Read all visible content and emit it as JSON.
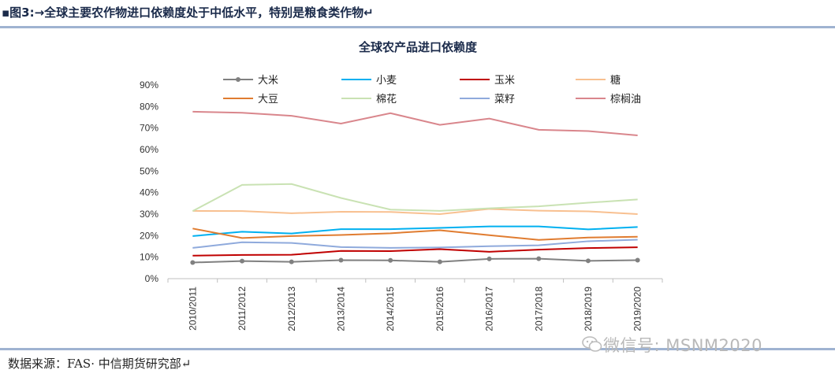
{
  "caption": "▪图3:→全球主要农作物进口依赖度处于中低水平，特别是粮食类作物↵",
  "source": "数据来源：FAS· 中信期货研究部↵",
  "watermark": "微信号: MSNM2020",
  "chart_data": {
    "type": "line",
    "title": "全球农产品进口依赖度",
    "xlabel": "",
    "ylabel": "",
    "categories": [
      "2010/2011",
      "2011/2012",
      "2012/2013",
      "2013/2014",
      "2014/2015",
      "2015/2016",
      "2016/2017",
      "2017/2018",
      "2018/2019",
      "2019/2020"
    ],
    "ylim": [
      0,
      90
    ],
    "yticks": [
      "0%",
      "10%",
      "20%",
      "30%",
      "40%",
      "50%",
      "60%",
      "70%",
      "80%",
      "90%"
    ],
    "legend_position": "top",
    "series": [
      {
        "name": "大米",
        "color": "#808080",
        "marker": true,
        "values": [
          7.5,
          8.2,
          7.8,
          8.6,
          8.5,
          7.8,
          9.2,
          9.3,
          8.3,
          8.6
        ]
      },
      {
        "name": "小麦",
        "color": "#00b0f0",
        "values": [
          19.8,
          21.8,
          21.0,
          23.0,
          23.0,
          23.6,
          24.3,
          24.3,
          22.9,
          24.0
        ]
      },
      {
        "name": "玉米",
        "color": "#c00000",
        "values": [
          10.7,
          11.0,
          11.1,
          12.9,
          12.8,
          13.7,
          12.5,
          13.5,
          14.2,
          14.6
        ]
      },
      {
        "name": "糖",
        "color": "#f8c090",
        "values": [
          31.5,
          31.4,
          30.4,
          31.1,
          31.0,
          30.0,
          32.4,
          31.6,
          31.3,
          30.0
        ]
      },
      {
        "name": "大豆",
        "color": "#e07c30",
        "values": [
          23.3,
          18.9,
          19.8,
          20.3,
          21.1,
          22.5,
          20.2,
          18.0,
          19.1,
          19.5
        ]
      },
      {
        "name": "棉花",
        "color": "#c9e2b3",
        "values": [
          31.4,
          43.6,
          44.0,
          37.5,
          32.1,
          31.5,
          32.7,
          33.6,
          35.3,
          36.8
        ]
      },
      {
        "name": "菜籽",
        "color": "#8faadc",
        "values": [
          14.3,
          16.9,
          16.6,
          14.7,
          14.3,
          14.5,
          15.1,
          15.5,
          17.4,
          18.1
        ]
      },
      {
        "name": "棕榈油",
        "color": "#d9868c",
        "values": [
          77.6,
          77.1,
          75.7,
          72.1,
          76.9,
          71.5,
          74.4,
          69.2,
          68.6,
          66.6
        ]
      }
    ]
  }
}
